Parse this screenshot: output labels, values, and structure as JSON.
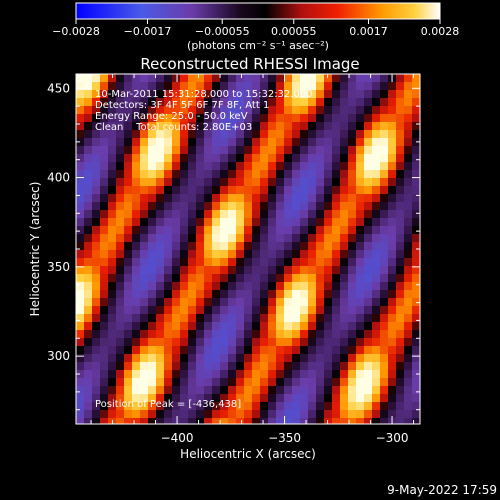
{
  "chart_data": {
    "type": "heatmap",
    "title": "Reconstructed RHESSI Image",
    "xlabel": "Heliocentric X (arcsec)",
    "ylabel": "Heliocentric Y (arcsec)",
    "xlim": [
      -447,
      -287
    ],
    "ylim": [
      262,
      458
    ],
    "x_ticks": [
      -400,
      -350,
      -300
    ],
    "x_tick_labels": [
      "−400",
      "−350",
      "−300"
    ],
    "y_ticks": [
      300,
      350,
      400,
      450
    ],
    "y_tick_labels": [
      "300",
      "350",
      "400",
      "450"
    ],
    "colorbar": {
      "range": [
        -0.0028,
        0.0028
      ],
      "ticks": [
        -0.0028,
        -0.0017,
        -0.00055,
        0.00055,
        0.0017,
        0.0028
      ],
      "tick_labels": [
        "−0.0028",
        "−0.0017",
        "−0.00055",
        "0.00055",
        "0.0017",
        "0.0028"
      ],
      "units_label": "(photons cm⁻² s⁻¹ asec⁻²)"
    },
    "annotations": [
      "10-Mar-2011 15:31:28.000 to 15:32:32.000",
      "Detectors: 3F 4F 5F 6F 7F 8F, Att 1",
      "Energy Range: 25.0 - 50.0 keV",
      "Clean    Total counts: 2.80E+03"
    ],
    "peak_label": "Position of Peak = [-436,438]",
    "peak": {
      "x": -436,
      "y": 438
    }
  },
  "footer": {
    "date": "9-May-2022 17:59"
  },
  "colors": {
    "background": "#000000",
    "axes": "#ffffff",
    "colormap": [
      "#0000ff",
      "#5a4adc",
      "#6a3ca8",
      "#2a0a30",
      "#000000",
      "#b01010",
      "#e81800",
      "#ff9a00",
      "#ffd040",
      "#ffffff"
    ]
  }
}
